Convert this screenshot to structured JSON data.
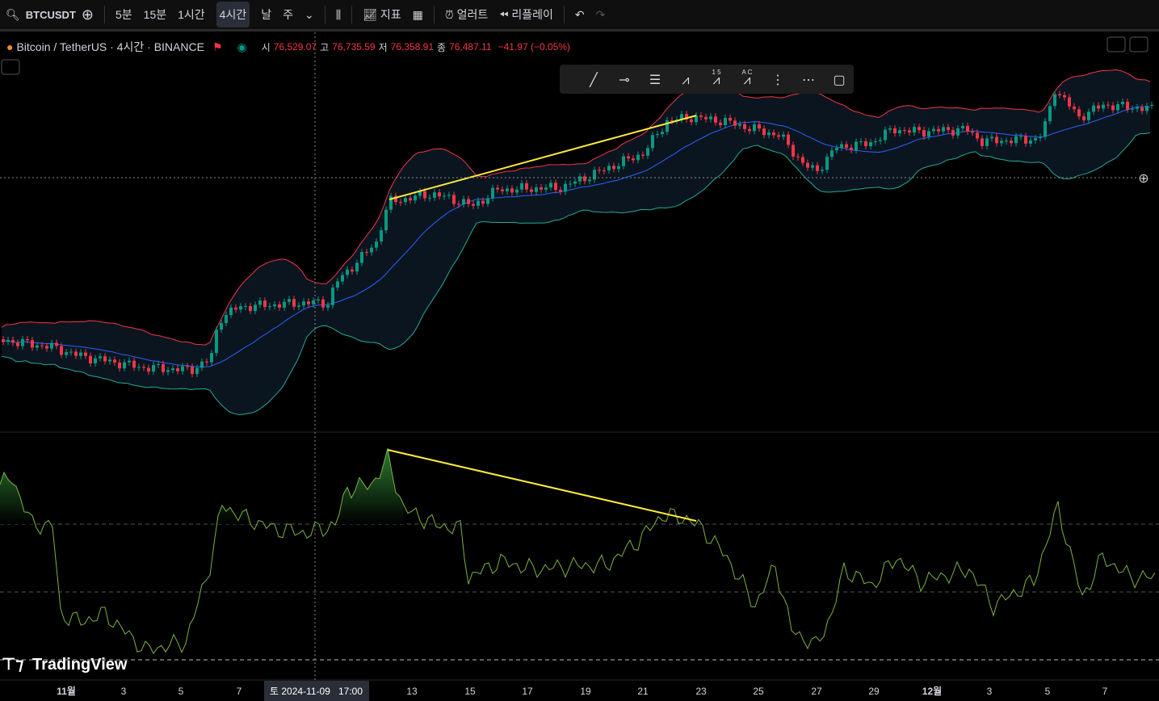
{
  "toolbar": {
    "symbol": "BTCUSDT",
    "intervals": [
      "5분",
      "15분",
      "1시간",
      "4시간",
      "날",
      "주"
    ],
    "indicators": "지표",
    "alert": "얼러트",
    "replay": "리플레이"
  },
  "legend": {
    "title": "Bitcoin / TetherUS · 4시간 · BINANCE",
    "open_label": "시",
    "open": "76,529.07",
    "high_label": "고",
    "high": "76,735.59",
    "low_label": "저",
    "low": "76,358.91",
    "close_label": "종",
    "close": "76,487.11",
    "change": "−41.97 (−0.05%)"
  },
  "drawing_tools": {
    "fib_label": "1 5",
    "abc_label": "A C"
  },
  "time_axis": {
    "labels": [
      "11월",
      "3",
      "5",
      "7",
      "13",
      "15",
      "17",
      "19",
      "21",
      "23",
      "25",
      "27",
      "29",
      "12월",
      "3",
      "5",
      "7"
    ],
    "crosshair_date": "토 2024-11-09",
    "crosshair_time": "17:00"
  },
  "logo": "TradingView"
}
